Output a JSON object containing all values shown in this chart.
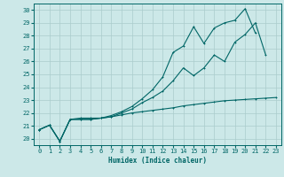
{
  "xlabel": "Humidex (Indice chaleur)",
  "bg_color": "#cce8e8",
  "grid_color": "#aacccc",
  "line_color": "#006666",
  "xlim": [
    -0.5,
    23.5
  ],
  "ylim": [
    19.5,
    30.5
  ],
  "xticks": [
    0,
    1,
    2,
    3,
    4,
    5,
    6,
    7,
    8,
    9,
    10,
    11,
    12,
    13,
    14,
    15,
    16,
    17,
    18,
    19,
    20,
    21,
    22,
    23
  ],
  "yticks": [
    20,
    21,
    22,
    23,
    24,
    25,
    26,
    27,
    28,
    29,
    30
  ],
  "line1_y": [
    20.7,
    21.05,
    19.8,
    21.5,
    21.5,
    21.5,
    21.6,
    21.7,
    21.85,
    22.0,
    22.1,
    22.2,
    22.3,
    22.4,
    22.55,
    22.65,
    22.75,
    22.85,
    22.95,
    23.0,
    23.05,
    23.1,
    23.15,
    23.2
  ],
  "line2_y": [
    20.7,
    21.05,
    19.8,
    21.5,
    21.5,
    21.5,
    21.6,
    21.7,
    22.0,
    22.3,
    22.8,
    23.2,
    23.7,
    24.5,
    25.5,
    24.9,
    25.5,
    26.5,
    26.0,
    27.5,
    28.1,
    29.0,
    26.5,
    null
  ],
  "line3_y": [
    20.7,
    21.05,
    19.8,
    21.5,
    21.6,
    21.6,
    21.6,
    21.8,
    22.1,
    22.5,
    23.1,
    23.8,
    24.8,
    26.7,
    27.2,
    28.7,
    27.4,
    28.6,
    29.0,
    29.2,
    30.1,
    28.2,
    null,
    null
  ]
}
